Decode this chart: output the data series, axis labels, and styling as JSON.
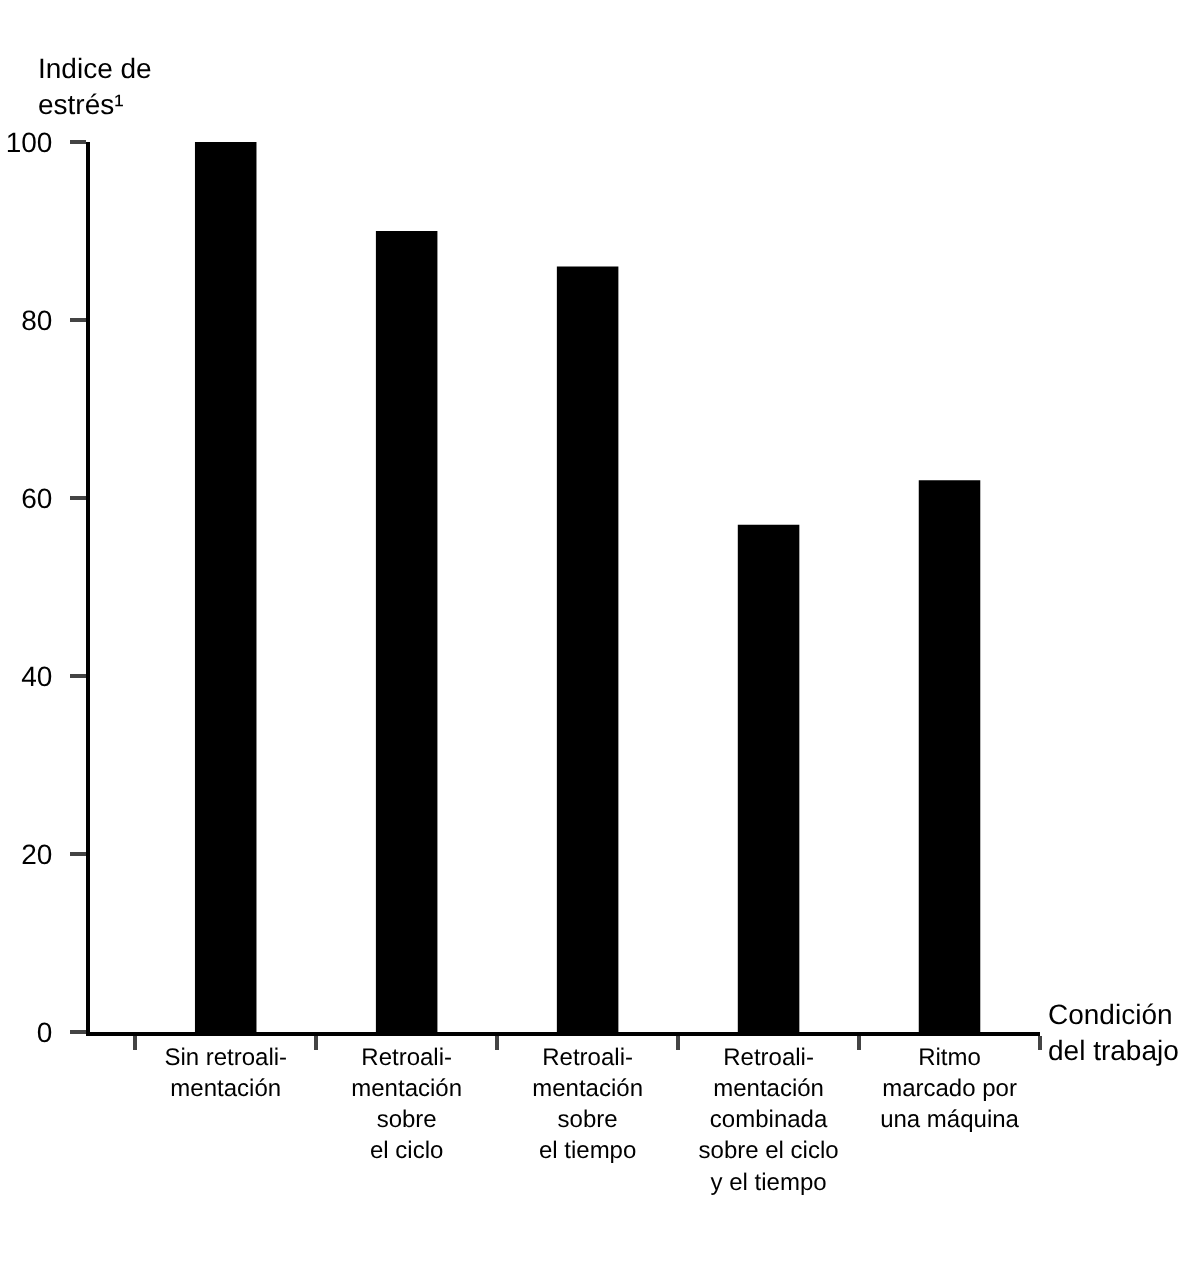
{
  "chart_data": {
    "type": "bar",
    "ylabel": "Indice de\nestrés¹",
    "xlabel": "Condición\ndel trabajo",
    "categories": [
      "Sin retroali-\nmentación",
      "Retroali-\nmentación\nsobre\nel ciclo",
      "Retroali-\nmentación\nsobre\nel tiempo",
      "Retroali-\nmentación\ncombinada\nsobre el ciclo\ny el tiempo",
      "Ritmo\nmarcado por\nuna máquina"
    ],
    "values": [
      100,
      90,
      86,
      57,
      62
    ],
    "color": "#000000",
    "ylim": [
      0,
      100
    ],
    "yticks": [
      0,
      20,
      40,
      60,
      80,
      100
    ],
    "grid": false,
    "legend": false
  }
}
